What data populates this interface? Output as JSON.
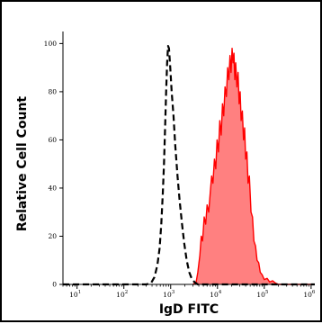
{
  "chart_data": {
    "type": "area",
    "xlabel": "IgD FITC",
    "ylabel": "Relative Cell Count",
    "x_scale": "log",
    "xlim": [
      5,
      1200000
    ],
    "ylim": [
      0,
      105
    ],
    "x_ticks": [
      {
        "value": 10,
        "base": "10",
        "exp": "1"
      },
      {
        "value": 100,
        "base": "10",
        "exp": "2"
      },
      {
        "value": 1000,
        "base": "10",
        "exp": "3"
      },
      {
        "value": 10000,
        "base": "10",
        "exp": "4"
      },
      {
        "value": 100000,
        "base": "10",
        "exp": "5"
      },
      {
        "value": 1000000,
        "base": "10",
        "exp": "6"
      }
    ],
    "y_ticks": [
      0,
      20,
      40,
      60,
      80,
      100
    ],
    "grid": false,
    "series": [
      {
        "style": "dashed",
        "color": "#000000",
        "fill": "none",
        "points": [
          [
            5,
            0
          ],
          [
            300,
            0
          ],
          [
            380,
            0.5
          ],
          [
            450,
            3
          ],
          [
            520,
            8
          ],
          [
            580,
            15
          ],
          [
            630,
            25
          ],
          [
            680,
            38
          ],
          [
            720,
            50
          ],
          [
            760,
            65
          ],
          [
            800,
            80
          ],
          [
            840,
            92
          ],
          [
            880,
            99
          ],
          [
            920,
            98
          ],
          [
            980,
            90
          ],
          [
            1050,
            80
          ],
          [
            1150,
            70
          ],
          [
            1250,
            58
          ],
          [
            1400,
            45
          ],
          [
            1550,
            35
          ],
          [
            1750,
            25
          ],
          [
            1950,
            17
          ],
          [
            2200,
            10
          ],
          [
            2500,
            5
          ],
          [
            2800,
            2.5
          ],
          [
            3200,
            1
          ],
          [
            3800,
            0
          ],
          [
            1200000,
            0
          ]
        ]
      },
      {
        "style": "solid",
        "color": "#ff0000",
        "fill": "#ff8080",
        "points": [
          [
            3000,
            0
          ],
          [
            3500,
            1
          ],
          [
            3800,
            5
          ],
          [
            4200,
            12
          ],
          [
            4500,
            20
          ],
          [
            4800,
            18
          ],
          [
            5200,
            28
          ],
          [
            5600,
            25
          ],
          [
            6000,
            33
          ],
          [
            6500,
            30
          ],
          [
            7000,
            38
          ],
          [
            7500,
            45
          ],
          [
            8000,
            42
          ],
          [
            8600,
            52
          ],
          [
            9200,
            48
          ],
          [
            9800,
            60
          ],
          [
            10500,
            55
          ],
          [
            11200,
            68
          ],
          [
            12000,
            62
          ],
          [
            12800,
            75
          ],
          [
            13600,
            70
          ],
          [
            14500,
            82
          ],
          [
            15500,
            78
          ],
          [
            16500,
            90
          ],
          [
            17500,
            85
          ],
          [
            18500,
            95
          ],
          [
            19500,
            88
          ],
          [
            20500,
            98
          ],
          [
            21500,
            92
          ],
          [
            22500,
            96
          ],
          [
            23500,
            85
          ],
          [
            24500,
            92
          ],
          [
            26000,
            82
          ],
          [
            27500,
            88
          ],
          [
            29000,
            75
          ],
          [
            30500,
            80
          ],
          [
            32000,
            68
          ],
          [
            34000,
            72
          ],
          [
            36000,
            60
          ],
          [
            38000,
            65
          ],
          [
            40000,
            52
          ],
          [
            42500,
            55
          ],
          [
            45000,
            42
          ],
          [
            48000,
            45
          ],
          [
            52000,
            30
          ],
          [
            56000,
            28
          ],
          [
            60000,
            18
          ],
          [
            65000,
            16
          ],
          [
            70000,
            10
          ],
          [
            76000,
            9
          ],
          [
            82000,
            5
          ],
          [
            90000,
            4
          ],
          [
            100000,
            2
          ],
          [
            115000,
            2.5
          ],
          [
            130000,
            1
          ],
          [
            150000,
            1.5
          ],
          [
            175000,
            0.5
          ],
          [
            200000,
            0
          ],
          [
            1200000,
            0
          ]
        ]
      }
    ]
  }
}
